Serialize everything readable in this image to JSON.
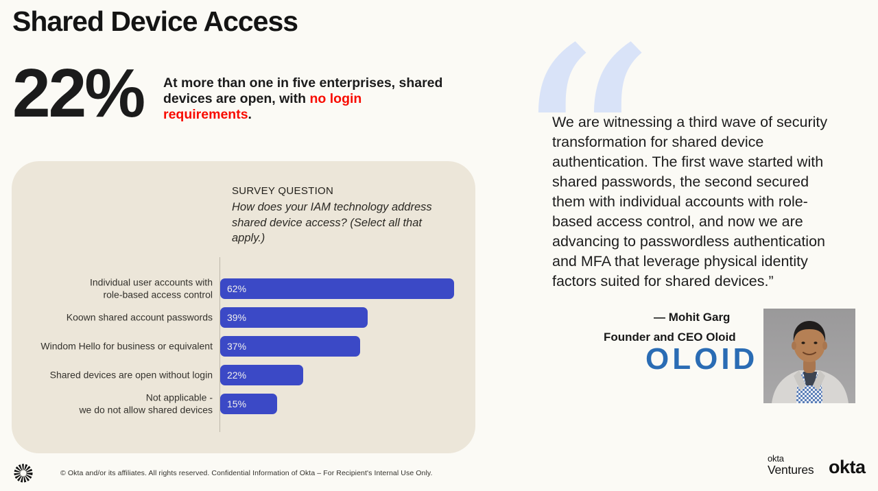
{
  "colors": {
    "bg": "#FBFAF5",
    "panel": "#ECE6D9",
    "bar": "#3B49C6",
    "red": "#F80B00",
    "oloid": "#2A6CB4",
    "quotemark": "#D9E3F8",
    "ink": "#191919",
    "axis": "#BDB7A9"
  },
  "header": {
    "title": "Shared Device Access"
  },
  "stat": {
    "value": "22%",
    "text_prefix": "At more than one in five enterprises, shared devices are open, with ",
    "text_highlight": "no login requirements",
    "text_suffix": "."
  },
  "chart_data": {
    "type": "bar",
    "orientation": "horizontal",
    "title": "SURVEY QUESTION",
    "question": "How does your IAM technology address shared device access? (Select all that apply.)",
    "categories": [
      "Individual user accounts with\nrole-based access control",
      "Koown shared account passwords",
      "Windom Hello for business or equivalent",
      "Shared devices are open without login",
      "Not applicable -\nwe do not allow shared devices"
    ],
    "values": [
      62,
      39,
      37,
      22,
      15
    ],
    "value_labels": [
      "62%",
      "39%",
      "37%",
      "22%",
      "15%"
    ],
    "xlim": [
      0,
      100
    ],
    "bar_color": "#3B49C6",
    "legend": "none",
    "grid": "off"
  },
  "quote": {
    "mark": "“",
    "text": "We are witnessing a third wave of security transformation for shared device authentication. The first wave started with shared passwords, the second secured them with individual accounts with role-based access control, and now we are advancing to passwordless authentication and MFA that leverage physical identity factors suited for shared devices.”",
    "attribution": "— Mohit Garg",
    "role": "Founder and CEO Oloid",
    "company_logo": "OLOID"
  },
  "footer": {
    "copyright": "© Okta and/or its affiliates. All rights reserved. Confidential Information of Okta – For Recipient's Internal Use Only.",
    "ventures_line1": "okta",
    "ventures_line2": "Ventures",
    "okta_logo": "okta"
  }
}
